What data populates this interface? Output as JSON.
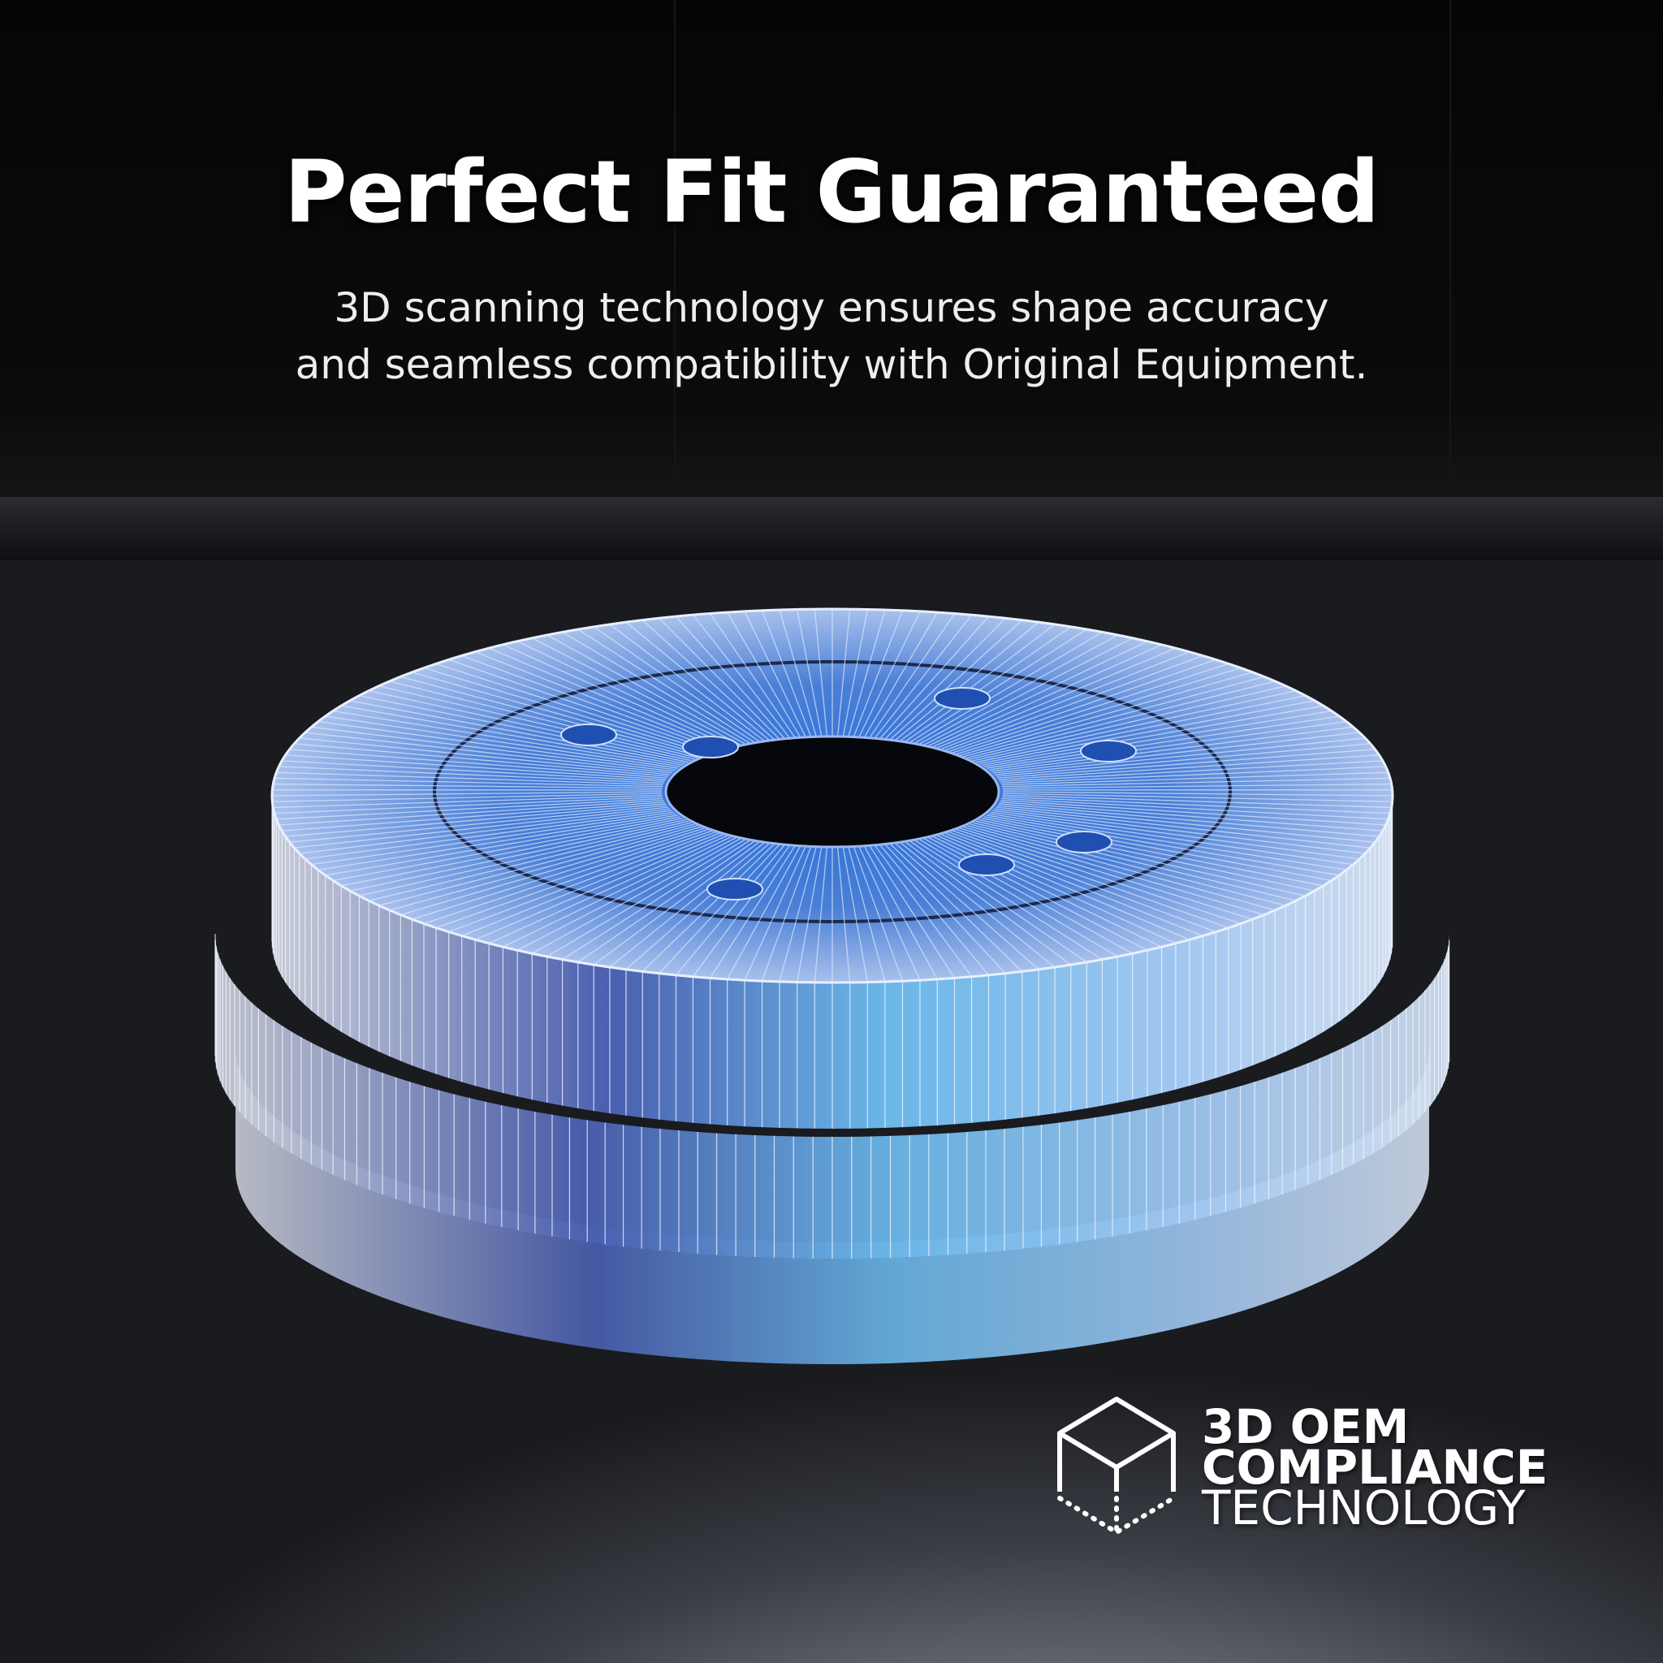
{
  "headline": {
    "title": "Perfect Fit Guaranteed",
    "subtitle_line1": "3D scanning technology ensures shape accuracy",
    "subtitle_line2": "and seamless compatibility with Original Equipment."
  },
  "badge": {
    "icon": "wireframe-cube-icon",
    "line1": "3D OEM",
    "line2": "COMPLIANCE",
    "line3": "TECHNOLOGY"
  },
  "colors": {
    "accent": "#3fa9f5",
    "wire": "#dde8ff"
  }
}
